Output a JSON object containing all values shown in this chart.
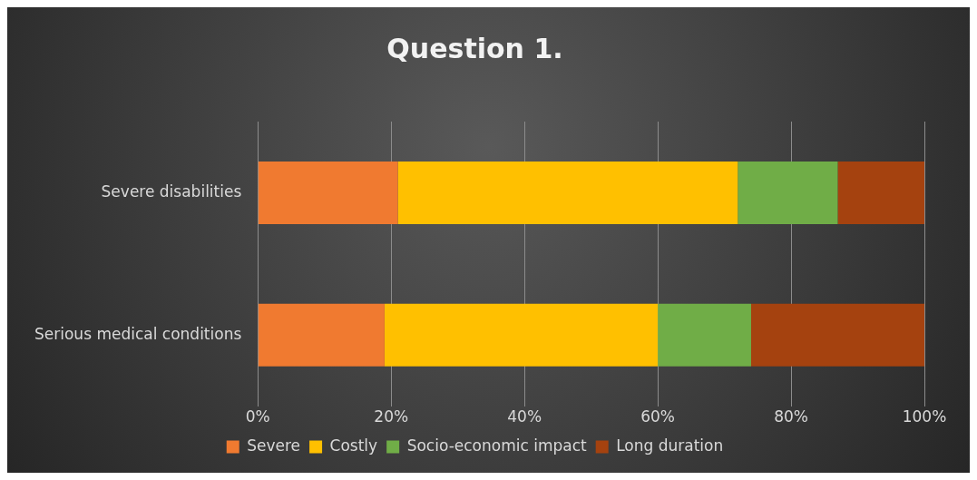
{
  "chart_data": {
    "type": "bar",
    "orientation": "horizontal",
    "stacked": true,
    "title": "Question 1.",
    "categories": [
      "Severe disabilities",
      "Serious medical conditions"
    ],
    "series": [
      {
        "name": "Severe",
        "color": "#f07a30",
        "values": [
          21,
          19
        ]
      },
      {
        "name": "Costly",
        "color": "#ffc000",
        "values": [
          51,
          41
        ]
      },
      {
        "name": "Socio-economic impact",
        "color": "#70ad47",
        "values": [
          15,
          14
        ]
      },
      {
        "name": "Long duration",
        "color": "#a5420f",
        "values": [
          13,
          26
        ]
      }
    ],
    "xlim": [
      0,
      100
    ],
    "xticks": [
      {
        "value": 0,
        "label": "0%"
      },
      {
        "value": 20,
        "label": "20%"
      },
      {
        "value": 40,
        "label": "40%"
      },
      {
        "value": 60,
        "label": "60%"
      },
      {
        "value": 80,
        "label": "80%"
      },
      {
        "value": 100,
        "label": "100%"
      }
    ],
    "grid": "x",
    "legend": "bottom"
  }
}
